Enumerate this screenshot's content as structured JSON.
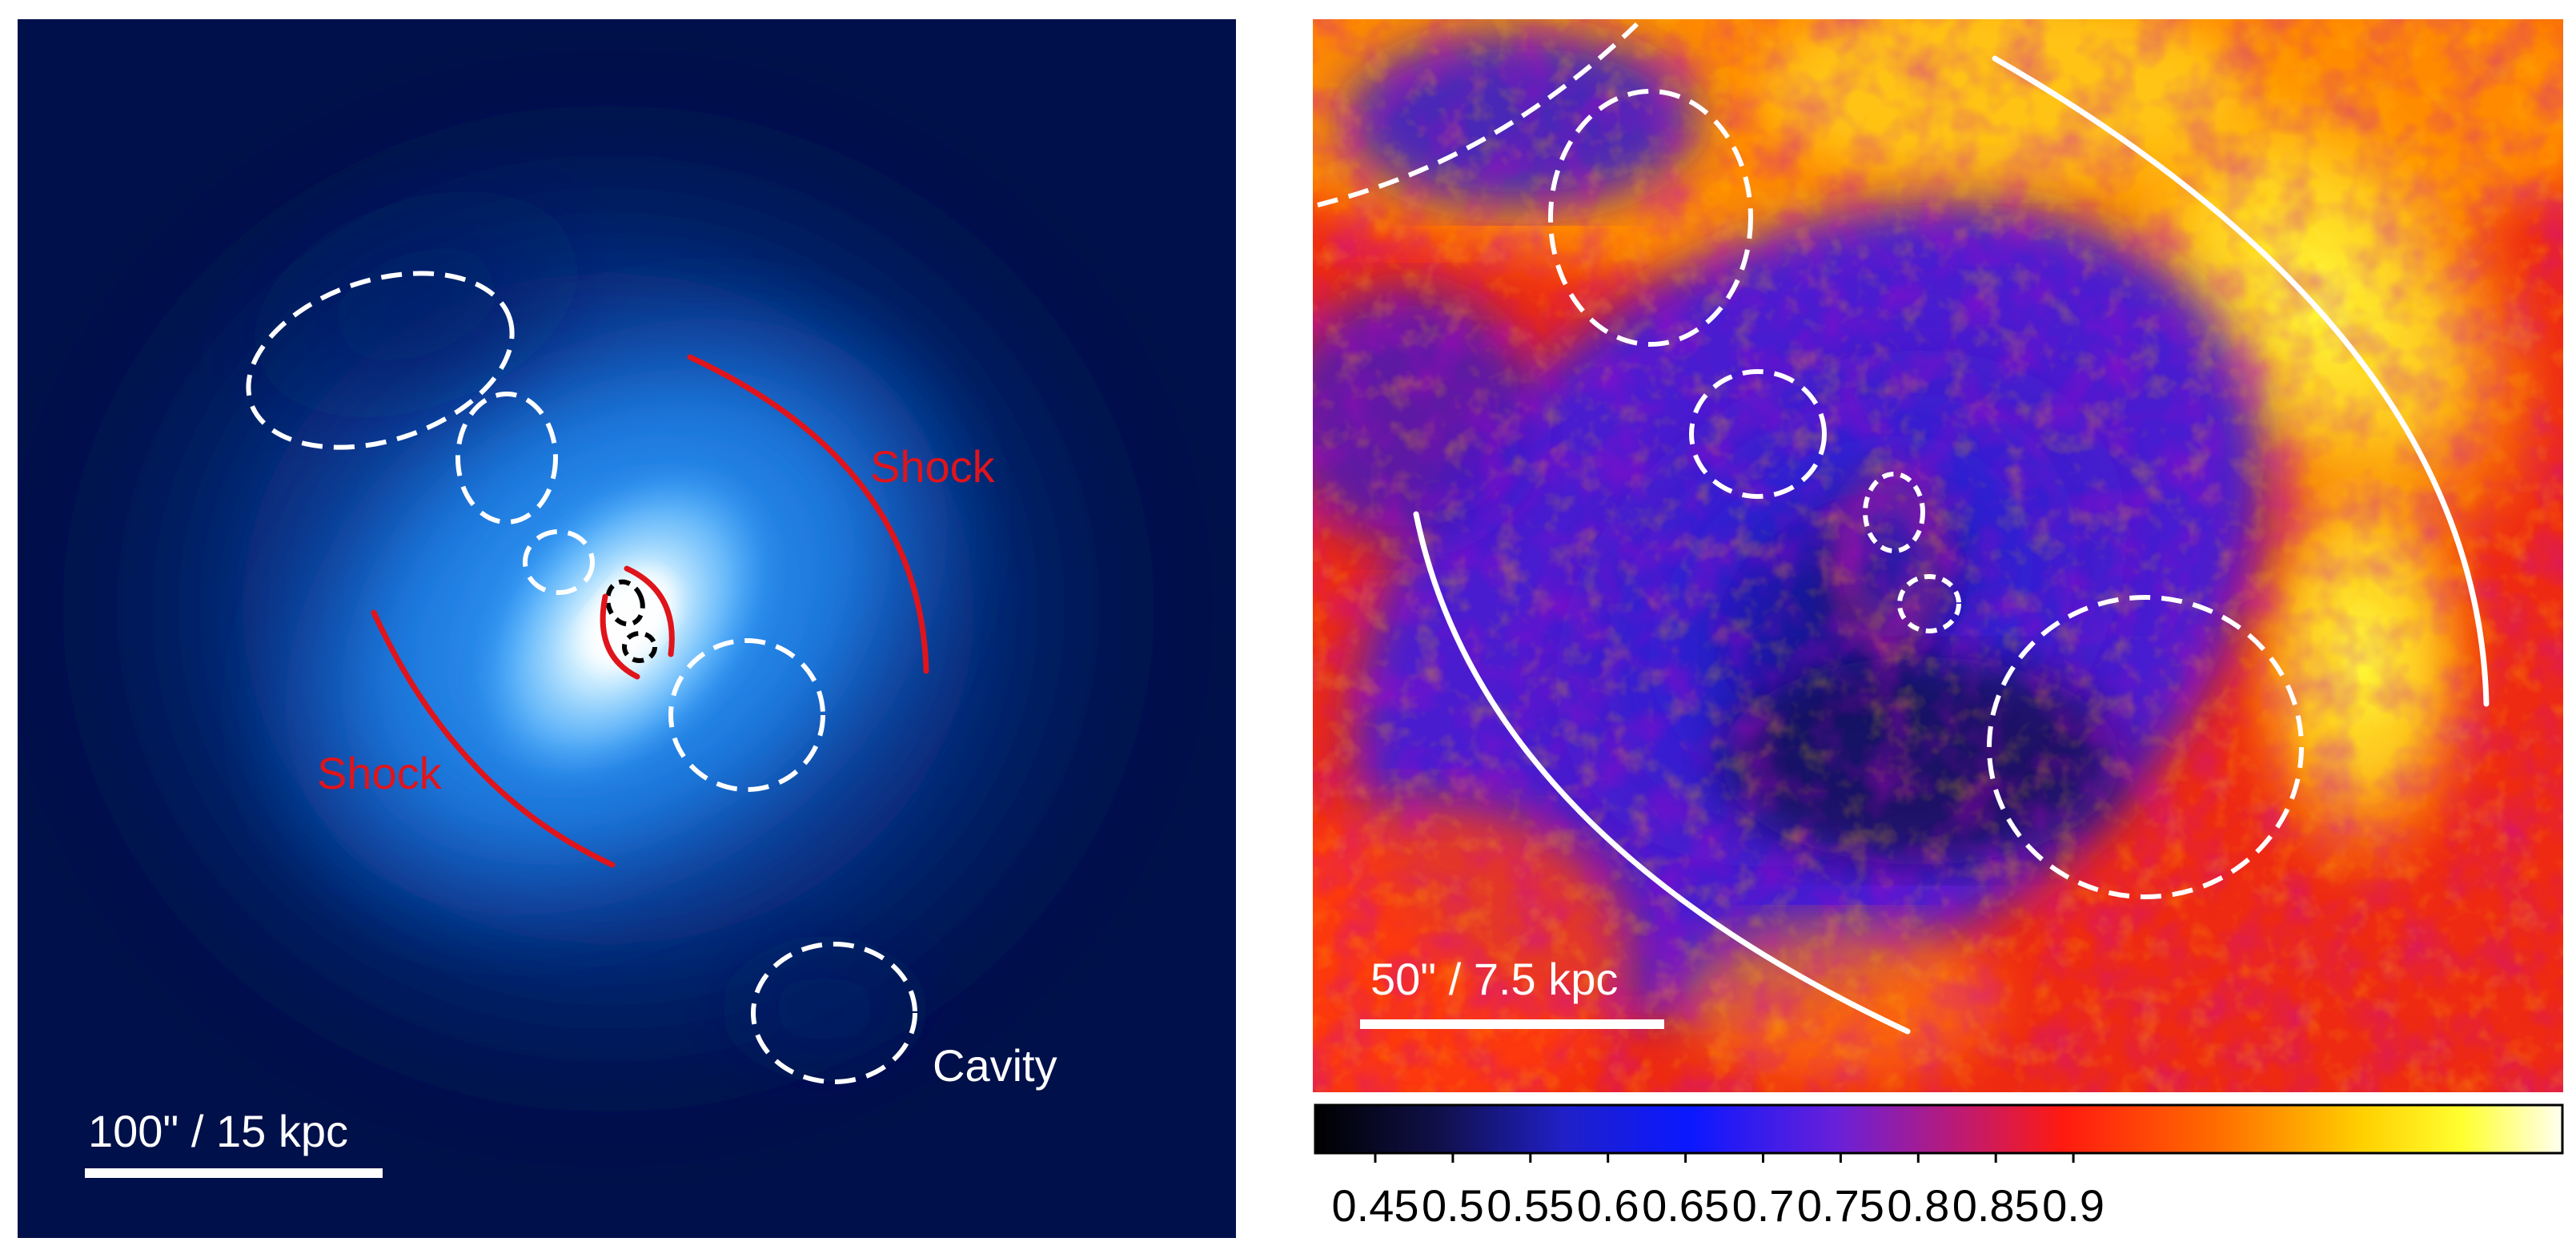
{
  "left_panel": {
    "shock_upper_label": "Shock",
    "shock_lower_label": "Shock",
    "cavity_label": "Cavity",
    "scalebar_label": "100\" / 15 kpc"
  },
  "right_panel": {
    "scalebar_label": "50\" / 7.5 kpc",
    "colorbar_ticks": [
      "0.45",
      "0.5",
      "0.55",
      "0.6",
      "0.65",
      "0.7",
      "0.75",
      "0.8",
      "0.85",
      "0.9"
    ]
  },
  "colors": {
    "annotation_red": "#e0141b",
    "annotation_white": "#ffffff",
    "annotation_black": "#000000",
    "xray_background": "#00104a",
    "xray_core": "#f4fbff"
  }
}
